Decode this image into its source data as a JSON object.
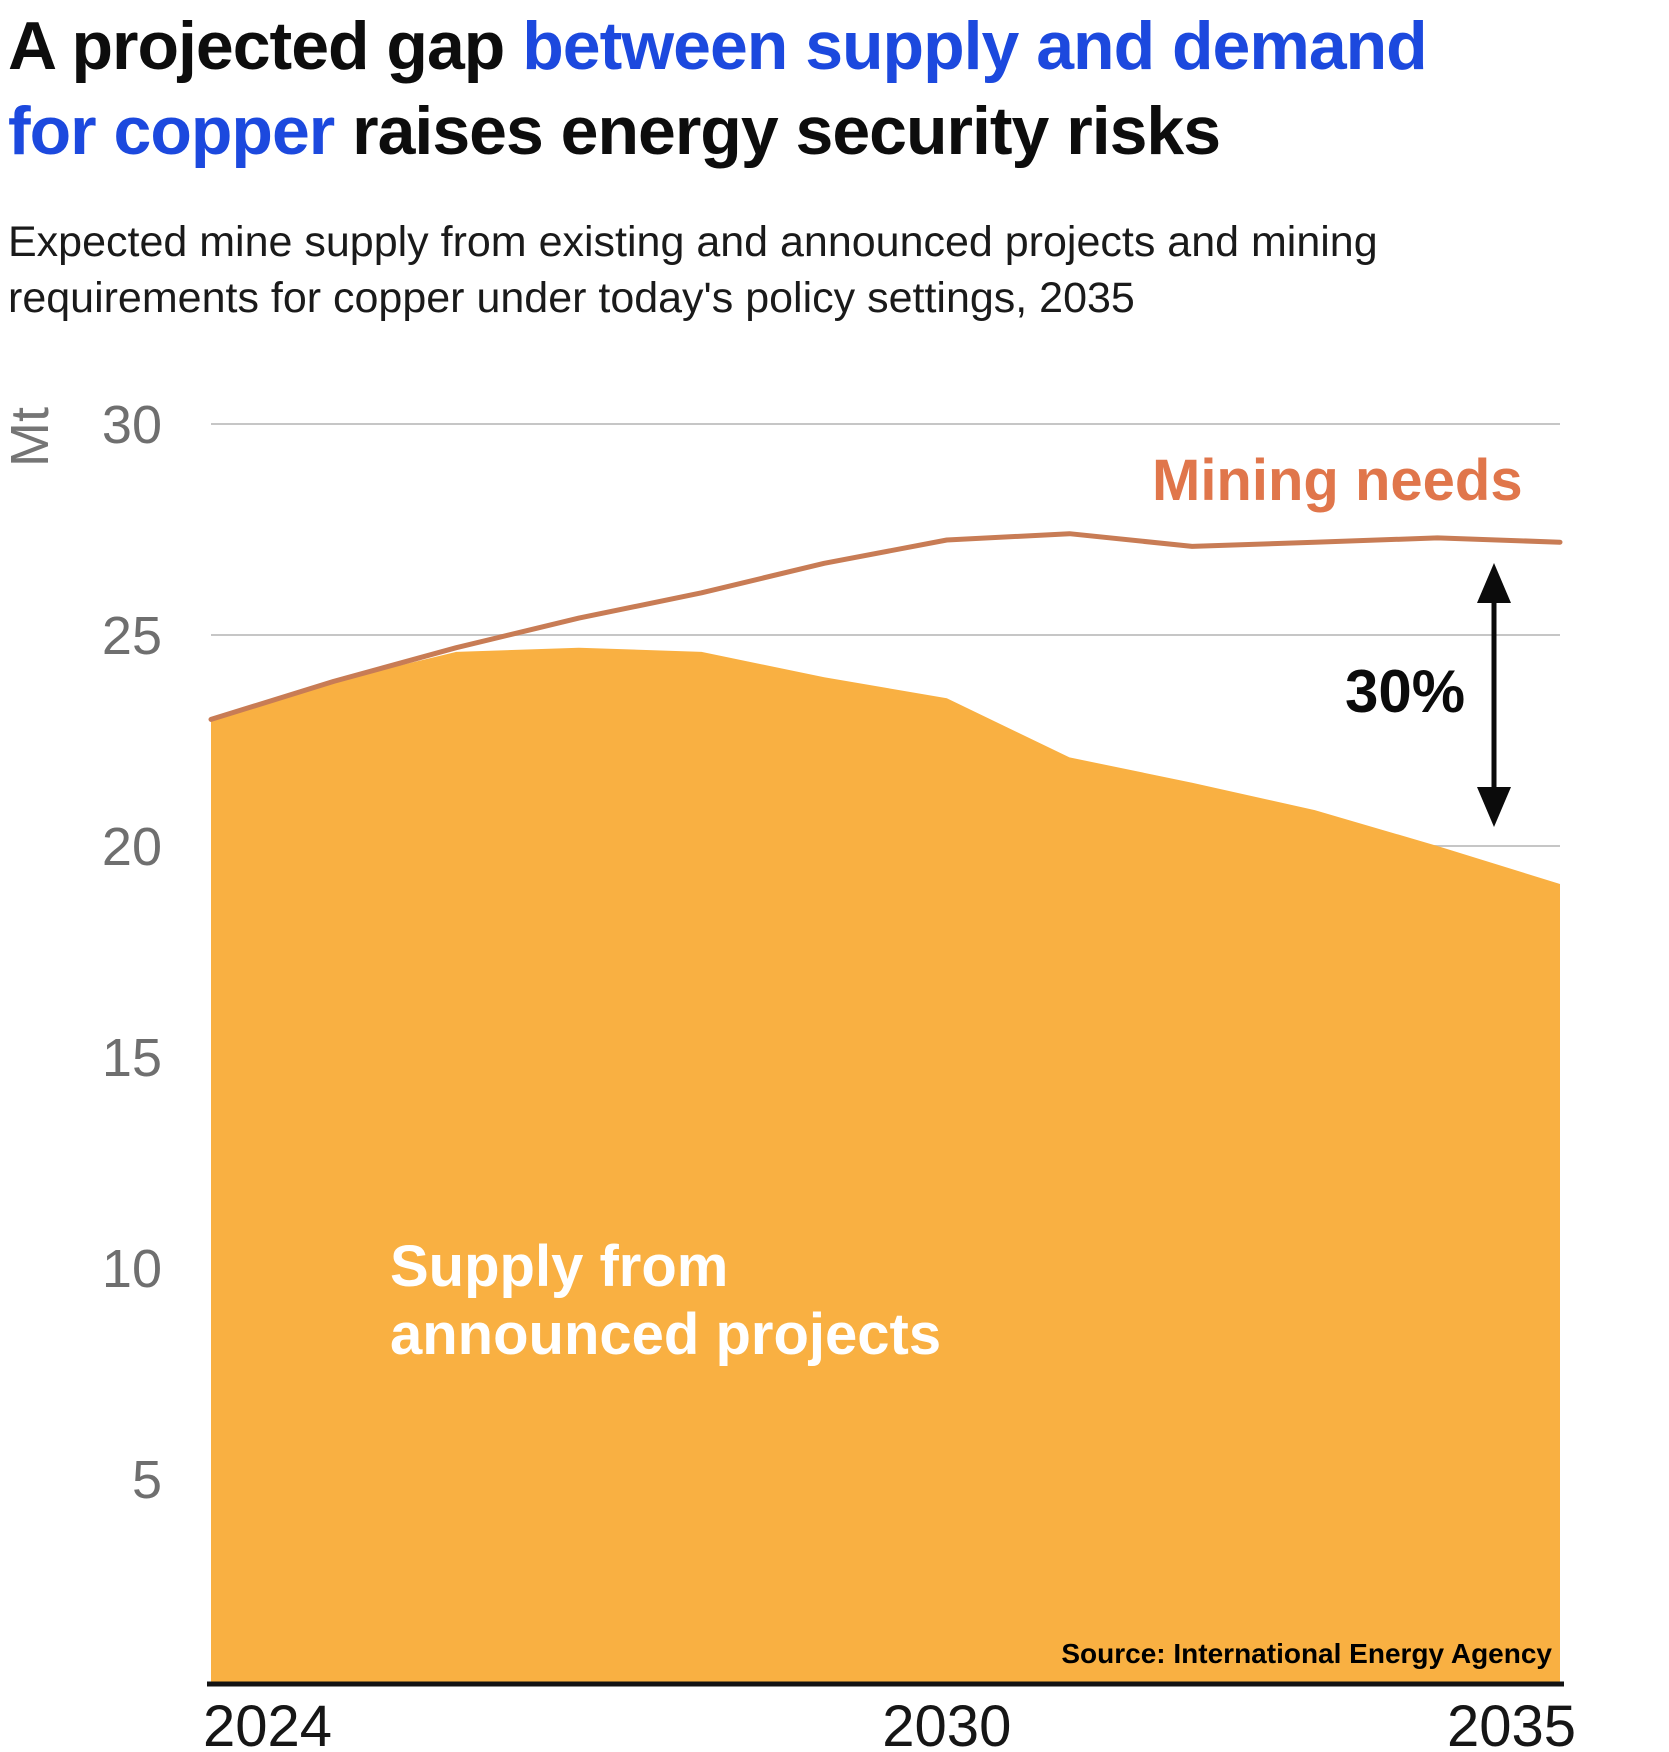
{
  "title": {
    "lines": [
      {
        "segments": [
          {
            "text": "A projected gap ",
            "style": "dark"
          },
          {
            "text": "between supply and demand",
            "style": "accent"
          }
        ]
      },
      {
        "segments": [
          {
            "text": "for copper",
            "style": "accent"
          },
          {
            "text": " raises energy security risks",
            "style": "dark"
          }
        ]
      }
    ]
  },
  "subtitle": "Expected mine supply from existing and announced projects and mining\nrequirements for copper under today's policy settings, 2035",
  "colors": {
    "accent_blue": "#1C49DE",
    "title_dark": "#0D0D0D",
    "area_fill": "#F9B042",
    "needs_line": "#C87C55",
    "needs_label": "#E0764B",
    "grid": "#C6C6C6",
    "axis": "#131313",
    "tick_gray": "#6F6F6F",
    "unit_gray": "#757575",
    "xtick_dark": "#161616",
    "area_label_text": "#FFFFFF",
    "annotation": "#0B0B0B",
    "source_text": "#000000"
  },
  "chart_data": {
    "type": "area",
    "title": "Expected mine supply from existing and announced projects and mining requirements for copper under today's policy settings, 2035",
    "unit_label": "Mt",
    "xlabel": "",
    "ylabel": "Mt",
    "ylim": [
      0,
      30
    ],
    "yticks": [
      5,
      10,
      15,
      20,
      25,
      30
    ],
    "grid": true,
    "x": [
      2024,
      2025,
      2026,
      2027,
      2028,
      2029,
      2030,
      2031,
      2032,
      2033,
      2034,
      2035
    ],
    "xtick_labels": [
      "2024",
      "2030",
      "2035"
    ],
    "series": [
      {
        "name": "Mining needs",
        "kind": "line",
        "values": [
          23.0,
          23.9,
          24.7,
          25.4,
          26.0,
          26.7,
          27.25,
          27.4,
          27.1,
          27.2,
          27.3,
          27.2
        ]
      },
      {
        "name": "Supply from announced projects",
        "kind": "area",
        "values": [
          23.0,
          23.9,
          24.6,
          24.7,
          24.6,
          24.0,
          23.5,
          22.1,
          21.5,
          20.85,
          20.0,
          19.1
        ]
      }
    ],
    "legend_position": "inline-labels",
    "annotations": [
      {
        "type": "series-label",
        "text": "Mining needs"
      },
      {
        "type": "gap-arrow",
        "text": "30%"
      }
    ]
  },
  "labels": {
    "line_label": "Mining needs",
    "area_label_lines": [
      "Supply from",
      "announced projects"
    ],
    "gap_label": "30%",
    "source": "Source: International Energy Agency"
  }
}
